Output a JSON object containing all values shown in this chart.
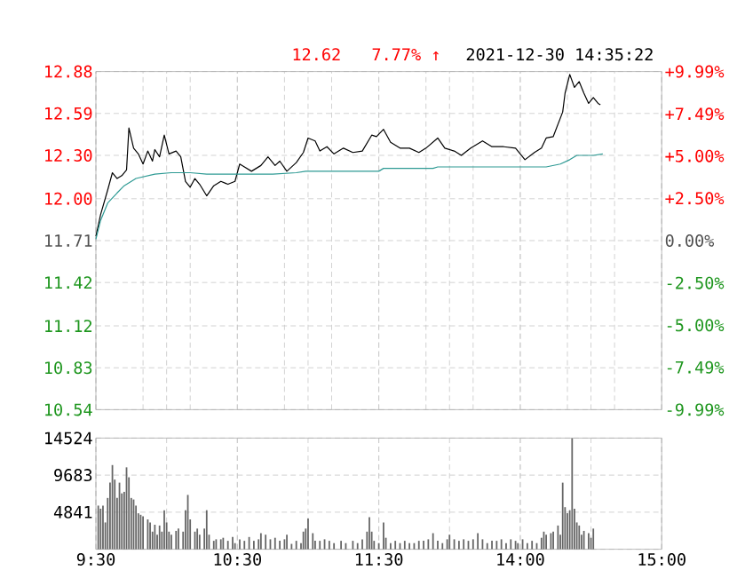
{
  "chart_data": [
    {
      "type": "line",
      "annotations": [
        "12.62",
        "7.77% ↑",
        "2021-12-30 14:35:22"
      ],
      "categories": [
        null,
        null,
        null,
        null,
        null,
        null,
        null,
        null,
        null,
        null,
        null,
        null,
        null,
        null,
        null,
        null,
        null,
        null,
        null,
        null,
        null,
        null,
        null,
        null,
        null,
        null,
        null,
        null,
        null,
        null,
        null,
        null,
        null,
        null,
        null,
        null,
        null,
        null,
        null,
        null,
        null,
        null,
        null,
        null,
        null,
        null,
        null,
        null,
        null,
        null,
        null,
        null,
        null,
        null,
        null,
        null,
        null,
        null,
        null,
        null,
        null,
        null,
        null,
        null,
        null,
        null,
        null,
        null,
        null,
        null,
        null,
        null,
        null,
        null,
        null,
        null,
        null,
        null,
        null,
        null,
        null,
        null,
        null,
        null,
        null,
        null,
        null,
        null,
        null,
        null,
        null,
        null,
        null,
        null,
        null,
        null,
        null,
        null,
        null,
        null,
        null,
        null,
        null,
        null,
        null,
        null,
        null,
        null,
        null,
        null,
        null,
        null,
        null,
        null,
        null,
        null,
        null,
        null,
        null,
        null,
        null,
        null,
        null,
        null,
        null,
        null,
        null,
        null,
        null,
        null,
        null,
        null,
        null,
        null,
        null,
        null,
        null,
        null,
        null,
        null,
        null,
        null,
        null,
        null,
        null,
        null,
        null,
        null,
        null,
        null,
        null,
        null,
        null,
        null,
        null,
        null,
        null,
        null,
        null,
        null,
        null,
        null,
        null,
        null,
        null,
        null,
        null,
        null,
        null,
        null,
        null,
        null,
        null,
        null,
        null,
        null,
        null,
        null,
        null,
        null,
        null,
        null,
        null,
        null,
        null,
        null,
        null,
        null,
        null,
        null,
        null,
        null,
        null,
        null,
        null,
        null,
        null,
        null,
        null,
        null,
        null,
        null,
        null,
        null,
        null,
        null,
        null,
        null,
        null,
        null,
        null,
        null,
        null,
        null,
        null,
        null,
        null,
        null,
        null,
        null,
        null,
        null,
        null,
        null,
        null,
        null,
        null,
        null,
        null,
        null,
        null,
        null,
        null,
        null,
        null,
        null,
        null,
        null,
        null,
        null,
        null
      ],
      "ylim": [
        10.54,
        12.88
      ],
      "yticks": [
        10.54,
        10.83,
        11.12,
        11.42,
        11.71,
        {
          "value": 12,
          "label": "12.00"
        },
        {
          "value": 12.3,
          "label": "12.30"
        },
        12.59,
        12.88
      ],
      "y2lim": [
        -9.99,
        9.99
      ],
      "y2ticks": [
        {
          "value": -9.99,
          "label": "-9.99%"
        },
        {
          "value": -7.49,
          "label": "-7.49%"
        },
        {
          "value": -5,
          "label": "-5.00%"
        },
        {
          "value": -2.5,
          "label": "-2.50%"
        },
        {
          "value": 0,
          "label": "0.00%"
        },
        {
          "value": 2.5,
          "label": "+2.50%"
        },
        {
          "value": 5,
          "label": "+5.00%"
        },
        {
          "value": 7.49,
          "label": "+7.49%"
        },
        {
          "value": 9.99,
          "label": "+9.99%"
        }
      ],
      "tick_labels": "y",
      "grid": true,
      "series": [
        {
          "color": "#000000",
          "values": [
            11.74,
            null,
            11.89,
            null,
            null,
            12.06,
            null,
            12.18,
            null,
            12.14,
            null,
            12.16,
            null,
            12.2,
            12.49,
            null,
            12.35,
            null,
            12.31,
            null,
            12.24,
            null,
            12.33,
            null,
            12.26,
            12.34,
            null,
            12.29,
            null,
            12.44,
            null,
            12.31,
            null,
            null,
            12.33,
            null,
            12.29,
            null,
            12.12,
            null,
            12.08,
            null,
            12.14,
            null,
            12.1,
            null,
            null,
            12.02,
            null,
            null,
            12.09,
            null,
            null,
            12.12,
            null,
            null,
            12.1,
            null,
            null,
            12.12,
            null,
            12.24,
            null,
            12.22,
            null,
            null,
            12.19,
            null,
            null,
            null,
            12.23,
            null,
            null,
            12.29,
            null,
            null,
            12.23,
            null,
            12.26,
            null,
            null,
            12.19,
            null,
            null,
            null,
            12.25,
            null,
            null,
            12.32,
            null,
            12.42,
            null,
            null,
            12.4,
            null,
            12.33,
            null,
            null,
            12.36,
            null,
            null,
            12.31,
            null,
            null,
            null,
            12.35,
            null,
            null,
            null,
            12.32,
            null,
            null,
            null,
            12.33,
            null,
            null,
            null,
            12.44,
            null,
            12.43,
            null,
            null,
            12.48,
            null,
            null,
            12.39,
            null,
            null,
            null,
            12.35,
            null,
            null,
            null,
            12.35,
            null,
            null,
            null,
            12.32,
            null,
            null,
            12.35,
            null,
            null,
            null,
            null,
            12.42,
            null,
            null,
            12.35,
            null,
            null,
            null,
            12.33,
            null,
            null,
            12.3,
            null,
            null,
            null,
            12.35,
            null,
            null,
            null,
            null,
            12.4,
            null,
            null,
            null,
            12.36,
            null,
            null,
            null,
            null,
            12.36,
            null,
            null,
            null,
            null,
            12.35,
            null,
            null,
            null,
            12.27,
            null,
            null,
            null,
            12.32,
            null,
            null,
            12.35,
            null,
            12.42,
            null,
            null,
            12.43,
            null,
            null,
            null,
            12.6,
            12.73,
            null,
            12.86,
            null,
            12.77,
            null,
            12.81,
            null,
            12.73,
            null,
            12.66,
            null,
            12.7,
            null,
            12.66,
            12.65,
            null,
            null,
            null,
            null,
            null,
            null,
            null,
            null,
            null,
            null,
            null,
            null,
            null,
            null,
            null,
            null,
            null,
            null,
            null,
            null,
            null,
            null,
            null,
            null,
            null,
            null
          ]
        },
        {
          "color": "#2e9a94",
          "values": [
            11.72,
            null,
            11.85,
            null,
            null,
            11.97,
            null,
            null,
            null,
            12.04,
            null,
            null,
            12.09,
            null,
            null,
            null,
            null,
            12.14,
            null,
            null,
            null,
            null,
            null,
            null,
            null,
            12.17,
            null,
            null,
            null,
            null,
            null,
            null,
            12.18,
            null,
            null,
            null,
            null,
            null,
            null,
            null,
            12.18,
            null,
            null,
            null,
            null,
            null,
            null,
            12.17,
            null,
            null,
            null,
            null,
            null,
            null,
            null,
            null,
            null,
            null,
            null,
            null,
            12.17,
            null,
            null,
            null,
            null,
            null,
            null,
            null,
            null,
            null,
            null,
            null,
            null,
            null,
            null,
            12.17,
            null,
            null,
            null,
            null,
            null,
            null,
            null,
            null,
            null,
            12.18,
            null,
            null,
            null,
            12.19,
            null,
            null,
            null,
            null,
            null,
            null,
            null,
            null,
            null,
            null,
            null,
            null,
            null,
            null,
            null,
            null,
            null,
            null,
            null,
            null,
            null,
            null,
            null,
            null,
            null,
            null,
            null,
            null,
            null,
            null,
            12.19,
            null,
            12.21,
            null,
            null,
            null,
            null,
            null,
            null,
            null,
            null,
            null,
            null,
            null,
            null,
            null,
            null,
            null,
            null,
            null,
            null,
            null,
            null,
            12.21,
            null,
            12.22,
            null,
            null,
            null,
            null,
            null,
            null,
            null,
            null,
            null,
            null,
            null,
            null,
            null,
            null,
            null,
            null,
            null,
            null,
            null,
            null,
            null,
            null,
            null,
            null,
            null,
            null,
            null,
            null,
            null,
            null,
            null,
            null,
            null,
            null,
            null,
            12.22,
            null,
            null,
            null,
            null,
            null,
            null,
            null,
            null,
            null,
            12.22,
            null,
            null,
            null,
            null,
            null,
            12.24,
            null,
            null,
            null,
            12.27,
            null,
            null,
            12.3,
            null,
            null,
            null,
            null,
            null,
            null,
            12.3,
            null,
            null,
            null,
            12.31,
            null,
            null,
            null,
            null,
            null,
            null,
            null,
            null,
            null,
            null,
            null,
            null,
            null,
            null,
            null,
            null,
            null,
            null,
            null,
            null,
            null,
            null,
            null,
            null,
            null
          ]
        }
      ]
    },
    {
      "type": "bar",
      "color": "#666666",
      "categories": [
        "9:30",
        null,
        null,
        null,
        null,
        null,
        null,
        null,
        null,
        null,
        null,
        null,
        null,
        null,
        null,
        null,
        null,
        null,
        null,
        null,
        null,
        null,
        null,
        null,
        null,
        null,
        null,
        null,
        null,
        null,
        null,
        null,
        null,
        null,
        null,
        null,
        null,
        null,
        null,
        null,
        null,
        null,
        null,
        null,
        null,
        null,
        null,
        null,
        null,
        null,
        null,
        null,
        null,
        null,
        null,
        null,
        null,
        null,
        null,
        null,
        "10:30",
        null,
        null,
        null,
        null,
        null,
        null,
        null,
        null,
        null,
        null,
        null,
        null,
        null,
        null,
        null,
        null,
        null,
        null,
        null,
        null,
        null,
        null,
        null,
        null,
        null,
        null,
        null,
        null,
        null,
        null,
        null,
        null,
        null,
        null,
        null,
        null,
        null,
        null,
        null,
        null,
        null,
        null,
        null,
        null,
        null,
        null,
        null,
        null,
        null,
        null,
        null,
        null,
        null,
        null,
        null,
        null,
        null,
        null,
        null,
        "11:30",
        null,
        null,
        null,
        null,
        null,
        null,
        null,
        null,
        null,
        null,
        null,
        null,
        null,
        null,
        null,
        null,
        null,
        null,
        null,
        null,
        null,
        null,
        null,
        null,
        null,
        null,
        null,
        null,
        null,
        null,
        null,
        null,
        null,
        null,
        null,
        null,
        null,
        null,
        null,
        null,
        null,
        null,
        null,
        null,
        null,
        null,
        null,
        null,
        null,
        null,
        null,
        null,
        null,
        null,
        null,
        null,
        null,
        null,
        null,
        "14:00",
        null,
        null,
        null,
        null,
        null,
        null,
        null,
        null,
        null,
        null,
        null,
        null,
        null,
        null,
        null,
        null,
        null,
        null,
        null,
        null,
        null,
        null,
        null,
        null,
        null,
        null,
        null,
        null,
        null,
        null,
        null,
        null,
        null,
        null,
        null,
        null,
        null,
        null,
        null,
        null,
        null,
        null,
        null,
        null,
        null,
        null,
        null,
        null,
        null,
        null,
        null,
        null,
        null,
        null,
        null,
        null,
        null,
        null,
        null,
        "15:00"
      ],
      "ylim": [
        0,
        14524
      ],
      "yticks": [
        {
          "value": 0,
          "label": null
        },
        4841,
        9683,
        14524
      ],
      "grid": true,
      "values": [
        null,
        5700,
        5300,
        5700,
        3500,
        6700,
        8700,
        11000,
        9100,
        6700,
        8700,
        7300,
        7500,
        10700,
        9400,
        6700,
        6500,
        5700,
        4700,
        4500,
        4300,
        null,
        3900,
        3500,
        2300,
        3200,
        1900,
        3100,
        2300,
        5100,
        3500,
        2300,
        1900,
        null,
        2400,
        2700,
        null,
        2300,
        5100,
        7100,
        3900,
        null,
        2300,
        2700,
        1900,
        null,
        2700,
        5100,
        1900,
        null,
        1100,
        1300,
        null,
        1300,
        1500,
        null,
        1100,
        null,
        1600,
        800,
        null,
        1300,
        null,
        1100,
        null,
        1600,
        null,
        1100,
        null,
        1300,
        2100,
        null,
        1900,
        null,
        1300,
        null,
        1500,
        null,
        1100,
        null,
        1300,
        1900,
        null,
        700,
        null,
        1100,
        null,
        800,
        2300,
        2700,
        4000,
        null,
        2100,
        1100,
        null,
        1100,
        null,
        1300,
        null,
        1100,
        null,
        800,
        null,
        null,
        1100,
        null,
        800,
        null,
        null,
        1100,
        null,
        800,
        null,
        1300,
        null,
        2300,
        4200,
        2300,
        1100,
        null,
        800,
        null,
        3500,
        1500,
        null,
        800,
        null,
        1100,
        null,
        800,
        null,
        1100,
        null,
        800,
        null,
        800,
        null,
        1100,
        null,
        1100,
        null,
        1300,
        null,
        2100,
        null,
        1100,
        null,
        800,
        null,
        1300,
        1900,
        null,
        1300,
        null,
        1100,
        null,
        1300,
        null,
        1100,
        null,
        1300,
        null,
        2100,
        null,
        1300,
        null,
        800,
        null,
        1100,
        null,
        1100,
        null,
        1300,
        null,
        800,
        null,
        1300,
        null,
        1100,
        800,
        null,
        1300,
        null,
        800,
        null,
        1100,
        null,
        800,
        null,
        1500,
        2300,
        1900,
        null,
        2100,
        2300,
        null,
        3100,
        1900,
        8700,
        5500,
        4700,
        5100,
        14500,
        5300,
        3500,
        3100,
        1900,
        2400,
        null,
        2100,
        1500,
        2700,
        null,
        null,
        null,
        null,
        null,
        null,
        null,
        null,
        null,
        null,
        null,
        null,
        null,
        null,
        null,
        null,
        null,
        null,
        null,
        null,
        null,
        null,
        null,
        null,
        null,
        null,
        null,
        null,
        null
      ]
    }
  ]
}
